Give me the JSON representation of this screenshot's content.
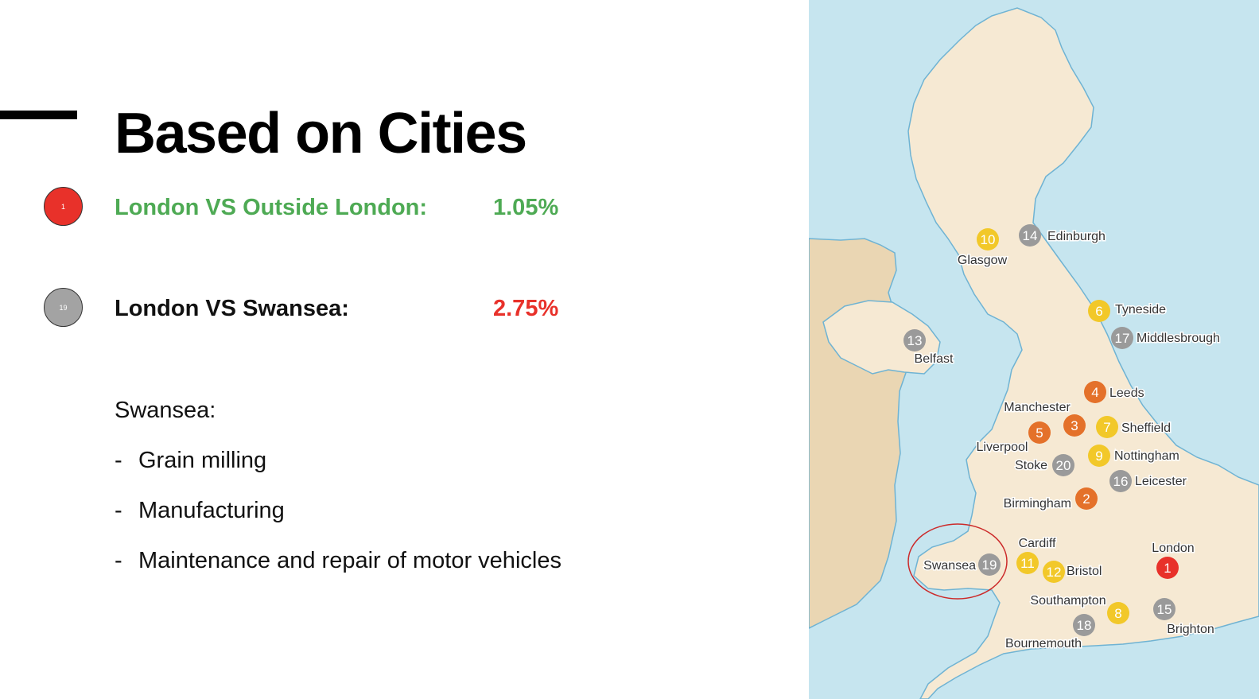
{
  "slide": {
    "title": "Based on Cities",
    "comparisons": [
      {
        "marker": "1",
        "marker_color": "#e8312a",
        "label": "London VS Outside London:",
        "label_color": "#4eaa54",
        "value": "1.05%",
        "value_color": "#4eaa54"
      },
      {
        "marker": "19",
        "marker_color": "#a3a3a3",
        "label": "London VS Swansea:",
        "label_color": "#111111",
        "value": "2.75%",
        "value_color": "#e8312a"
      }
    ],
    "details": {
      "heading": "Swansea:",
      "items": [
        "Grain milling",
        "Manufacturing",
        "Maintenance and repair of motor vehicles"
      ]
    }
  },
  "map": {
    "colors": {
      "sea": "#c6e5ef",
      "land": "#f6e9d3",
      "foreign_land": "#ead6b3",
      "coast": "#6fb3d3",
      "highlight": "#cc2a2a",
      "red": "#e8312a",
      "orange": "#e4712a",
      "yellow": "#f2c829",
      "gray": "#9a9a9a"
    },
    "cities": [
      {
        "name": "Edinburgh",
        "rank": "14",
        "color": "gray"
      },
      {
        "name": "Glasgow",
        "rank": "10",
        "color": "yellow"
      },
      {
        "name": "Tyneside",
        "rank": "6",
        "color": "yellow"
      },
      {
        "name": "Middlesbrough",
        "rank": "17",
        "color": "gray"
      },
      {
        "name": "Belfast",
        "rank": "13",
        "color": "gray"
      },
      {
        "name": "Leeds",
        "rank": "4",
        "color": "orange"
      },
      {
        "name": "Manchester",
        "rank": "3",
        "color": "orange"
      },
      {
        "name": "Sheffield",
        "rank": "7",
        "color": "yellow"
      },
      {
        "name": "Liverpool",
        "rank": "5",
        "color": "orange"
      },
      {
        "name": "Nottingham",
        "rank": "9",
        "color": "yellow"
      },
      {
        "name": "Stoke",
        "rank": "20",
        "color": "gray"
      },
      {
        "name": "Leicester",
        "rank": "16",
        "color": "gray"
      },
      {
        "name": "Birmingham",
        "rank": "2",
        "color": "orange"
      },
      {
        "name": "Cardiff",
        "rank": "11",
        "color": "yellow"
      },
      {
        "name": "London",
        "rank": "1",
        "color": "red"
      },
      {
        "name": "Swansea",
        "rank": "19",
        "color": "gray"
      },
      {
        "name": "Bristol",
        "rank": "12",
        "color": "yellow"
      },
      {
        "name": "Southampton",
        "rank": "8",
        "color": "yellow"
      },
      {
        "name": "Brighton",
        "rank": "15",
        "color": "gray"
      },
      {
        "name": "Bournemouth",
        "rank": "18",
        "color": "gray"
      }
    ]
  }
}
